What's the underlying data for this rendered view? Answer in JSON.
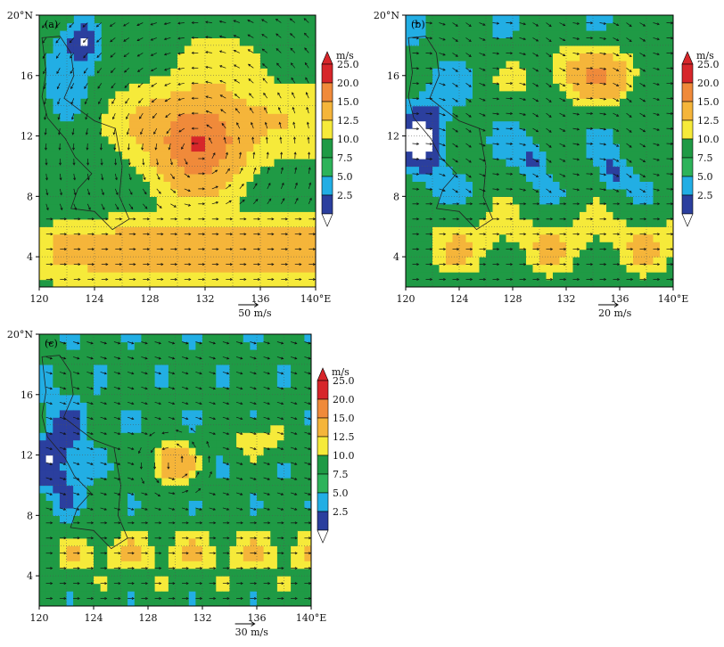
{
  "figure": {
    "units": "m/s",
    "scale_levels": [
      "25.0",
      "20.0",
      "15.0",
      "12.5",
      "10.0",
      "7.5",
      "5.0",
      "2.5"
    ],
    "scale_colors": [
      "#d7262a",
      "#f08a3a",
      "#f5b53a",
      "#f6ea3a",
      "#1f9a45",
      "#2db35a",
      "#22aee4",
      "#2b3f9e"
    ],
    "map_colors": {
      "land": "#ffffff",
      "c1": "#2b3f9e",
      "c2": "#22aee4",
      "c3": "#1f9a45",
      "c4": "#f6ea3a",
      "c5": "#f5b53a",
      "c6": "#f08a3a",
      "c7": "#d7262a"
    }
  },
  "chart_data": [
    {
      "type": "heatmap",
      "panel_label": "(a)",
      "x_ticks": [
        "120",
        "124",
        "128",
        "132",
        "136",
        "140°E"
      ],
      "y_ticks": [
        "20°N",
        "16",
        "12",
        "8",
        "4"
      ],
      "xlim": [
        120,
        140
      ],
      "ylim": [
        2,
        20
      ],
      "reference_vector": "50 m/s",
      "levels": [
        2.5,
        5.0,
        7.5,
        10.0,
        12.5,
        15.0,
        20.0,
        25.0
      ],
      "colorbar_units": "m/s"
    },
    {
      "type": "heatmap",
      "panel_label": "(b)",
      "x_ticks": [
        "120",
        "124",
        "128",
        "132",
        "136",
        "140°E"
      ],
      "y_ticks": [
        "20°N",
        "16",
        "12",
        "8",
        "4"
      ],
      "xlim": [
        120,
        140
      ],
      "ylim": [
        2,
        20
      ],
      "reference_vector": "20 m/s",
      "levels": [
        2.5,
        5.0,
        7.5,
        10.0,
        12.5,
        15.0,
        20.0,
        25.0
      ],
      "colorbar_units": "m/s"
    },
    {
      "type": "heatmap",
      "panel_label": "(c)",
      "x_ticks": [
        "120",
        "124",
        "128",
        "132",
        "136",
        "140°E"
      ],
      "y_ticks": [
        "20°N",
        "16",
        "12",
        "8",
        "4"
      ],
      "xlim": [
        120,
        140
      ],
      "ylim": [
        2,
        20
      ],
      "reference_vector": "30 m/s",
      "levels": [
        2.5,
        5.0,
        7.5,
        10.0,
        12.5,
        15.0,
        20.0,
        25.0
      ],
      "colorbar_units": "m/s"
    }
  ]
}
